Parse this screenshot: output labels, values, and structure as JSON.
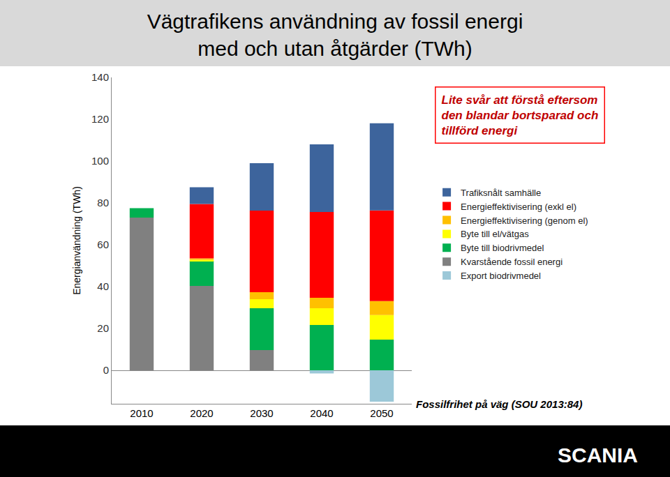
{
  "chart_data": {
    "type": "bar",
    "stacked": true,
    "title": "Vägtrafikens användning av fossil energi\nmed och utan åtgärder (TWh)",
    "y_label": "Energianvändning (TWh)",
    "note": "Lite svår att förstå eftersom\nden blandar bortsparad och\ntillförd energi",
    "source": "Fossilfrihet på väg (SOU 2013:84)",
    "logo_text": "SCANIA",
    "categories": [
      "2010",
      "2020",
      "2030",
      "2040",
      "2050"
    ],
    "series": [
      {
        "name": "Trafiksnålt samhälle",
        "color": "#3d649c",
        "values": [
          0,
          8,
          22.7,
          32.3,
          41.7
        ]
      },
      {
        "name": "Energieffektivisering (exkl el)",
        "color": "#ff0000",
        "values": [
          0,
          26,
          39,
          41,
          43.3
        ]
      },
      {
        "name": "Energieffektivisering (genom el)",
        "color": "#ffc000",
        "values": [
          0,
          0.7,
          3.3,
          5,
          6.7
        ]
      },
      {
        "name": "Byte till el/vätgas",
        "color": "#ffff00",
        "values": [
          0,
          0.5,
          4.3,
          8,
          11.7
        ]
      },
      {
        "name": "Byte till biodrivmedel",
        "color": "#00b050",
        "values": [
          4.5,
          12,
          20,
          21.7,
          14.7
        ]
      },
      {
        "name": "Kvarstående fossil energi",
        "color": "#808080",
        "values": [
          73,
          40.3,
          9.7,
          0,
          0
        ]
      },
      {
        "name": "Export biodrivmedel",
        "color": "#9cc8d8",
        "values": [
          0,
          0,
          0,
          -1.5,
          -15
        ]
      }
    ],
    "ylim": [
      -16,
      140
    ],
    "yticks": [
      0,
      20,
      40,
      60,
      80,
      100,
      120,
      140
    ],
    "grid": false,
    "legend": "right"
  }
}
